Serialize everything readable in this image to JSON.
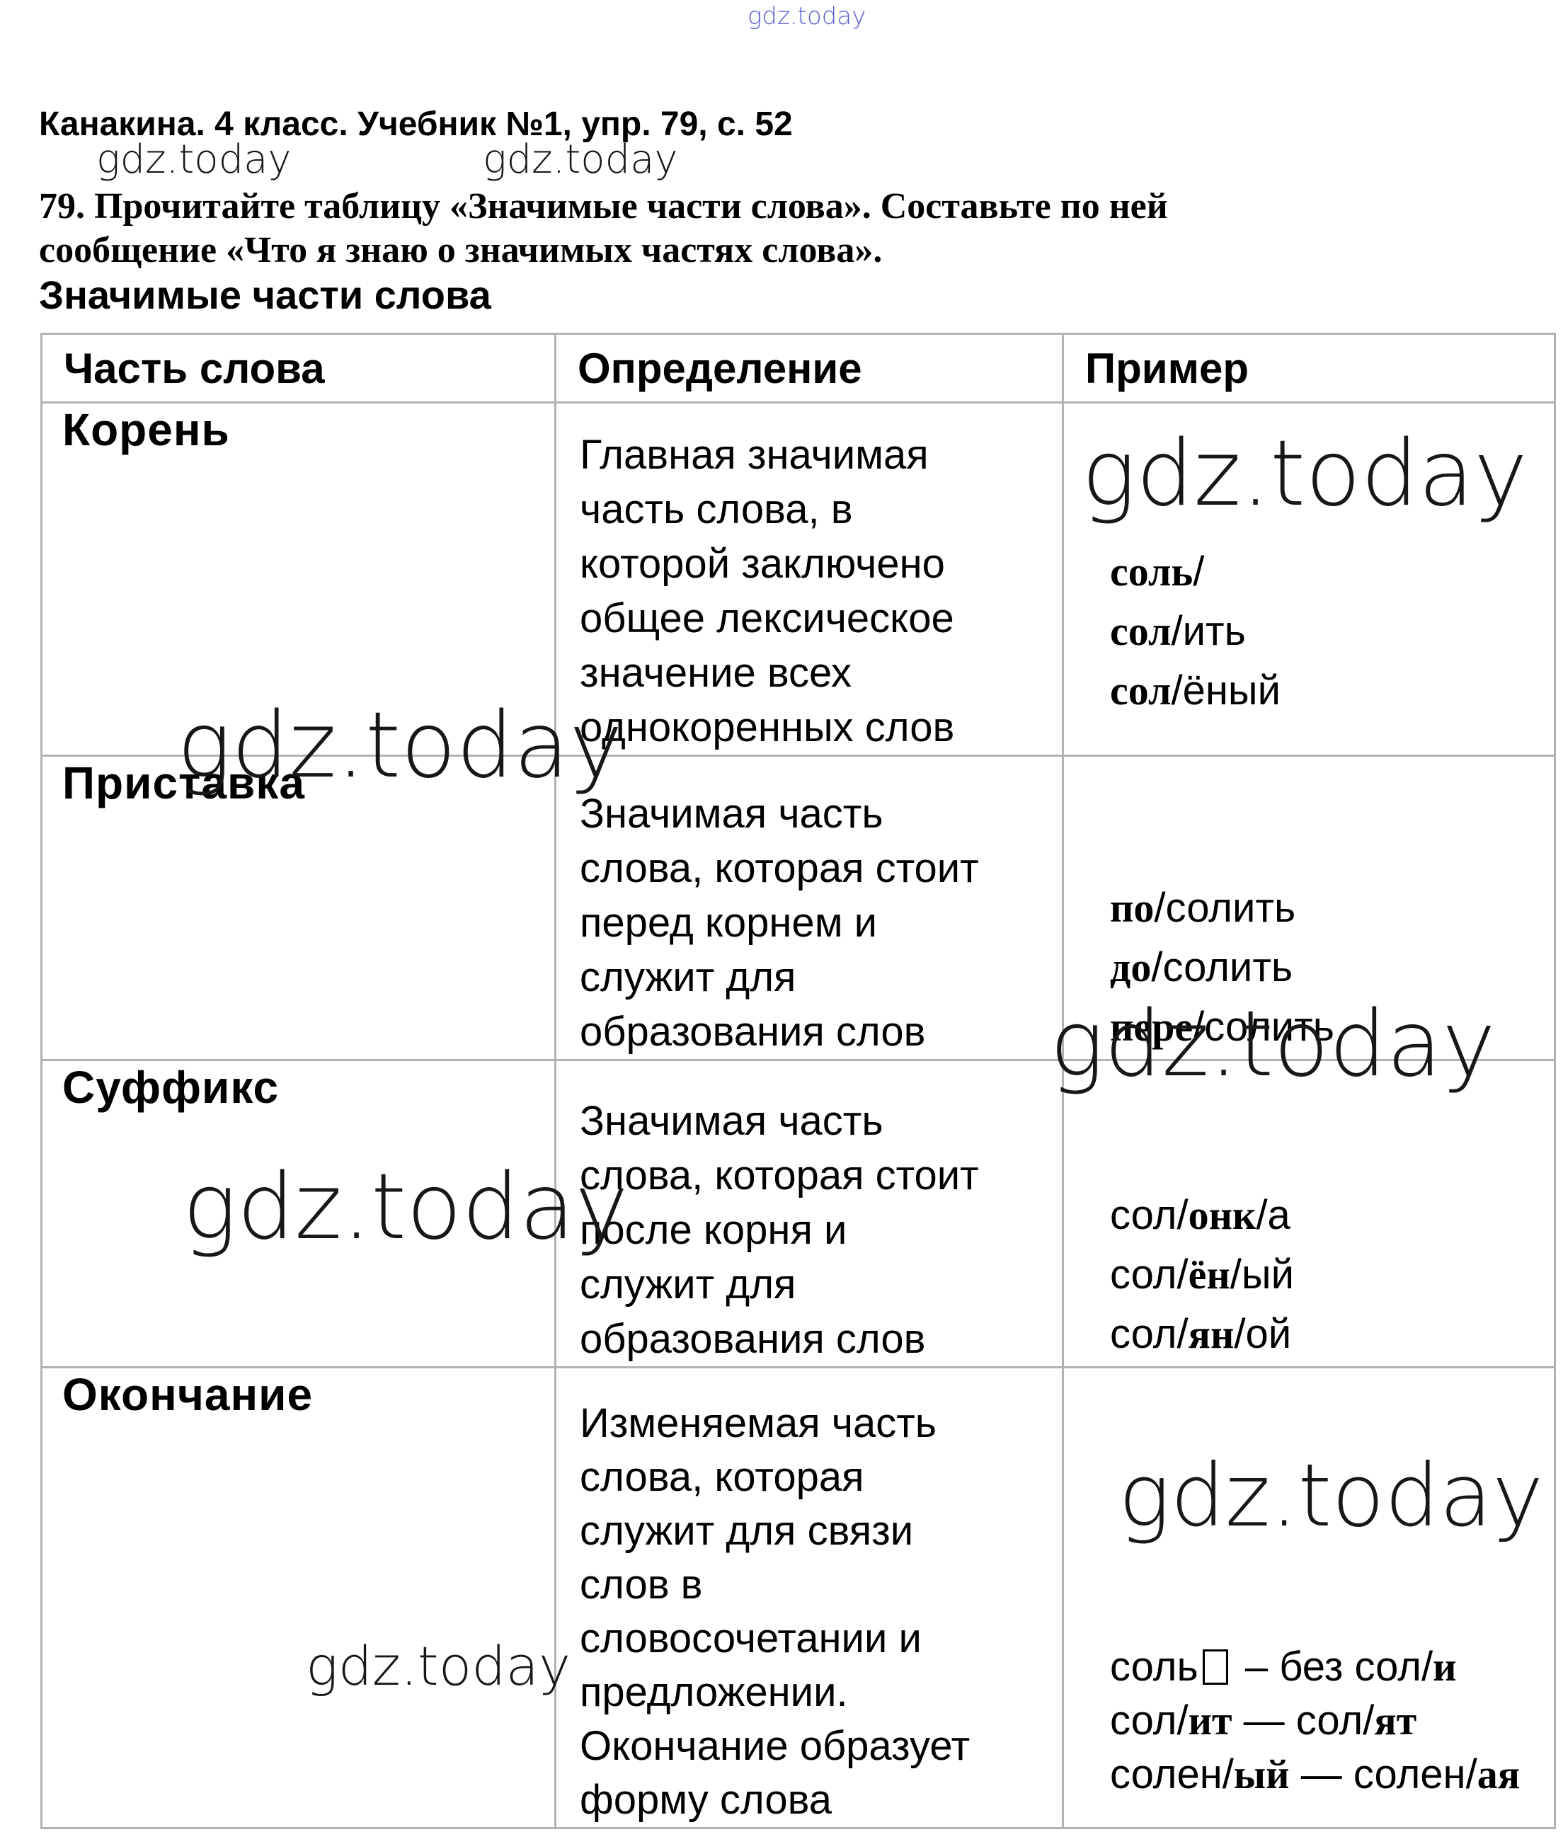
{
  "page": {
    "header": "Канакина. 4 класс. Учебник №1, упр. 79, с. 52",
    "task_line1": "79. Прочитайте таблицу «Значимые части слова». Составьте по ней",
    "task_line2": "сообщение «Что я знаю о значимых частях слова».",
    "table_title": "Значимые части слова"
  },
  "watermark": {
    "text": "gdz.today",
    "accent_color": "#5c5ccf",
    "dark_color": "#171717"
  },
  "table": {
    "columns": [
      "Часть слова",
      "Определение",
      "Пример"
    ],
    "rows": [
      {
        "part": "Корень",
        "definition": "Главная значимая\nчасть слова, в\nкоторой заключено\nобщее лексическое\nзначение всех\nоднокоренных слов",
        "examples": [
          [
            {
              "t": "соль",
              "f": "b"
            },
            {
              "t": "/",
              "f": "n"
            }
          ],
          [
            {
              "t": "сол",
              "f": "b"
            },
            {
              "t": "/ить",
              "f": "n"
            }
          ],
          [
            {
              "t": "сол",
              "f": "b"
            },
            {
              "t": "/ёный",
              "f": "n"
            }
          ]
        ]
      },
      {
        "part": "Приставка",
        "definition": "Значимая часть\nслова, которая стоит\nперед корнем и\nслужит для\nобразования слов",
        "examples": [
          [
            {
              "t": "по",
              "f": "b"
            },
            {
              "t": "/солить",
              "f": "n"
            }
          ],
          [
            {
              "t": "до",
              "f": "b"
            },
            {
              "t": "/солить",
              "f": "n"
            }
          ],
          [
            {
              "t": "пере",
              "f": "b"
            },
            {
              "t": "/солить",
              "f": "n"
            }
          ]
        ]
      },
      {
        "part": "Суффикс",
        "definition": "Значимая часть\nслова, которая стоит\nпосле корня и\nслужит для\nобразования слов",
        "examples": [
          [
            {
              "t": "сол/",
              "f": "n"
            },
            {
              "t": "онк",
              "f": "b"
            },
            {
              "t": "/а",
              "f": "n"
            }
          ],
          [
            {
              "t": "сол/",
              "f": "n"
            },
            {
              "t": "ён",
              "f": "b"
            },
            {
              "t": "/ый",
              "f": "n"
            }
          ],
          [
            {
              "t": "сол/",
              "f": "n"
            },
            {
              "t": "ян",
              "f": "b"
            },
            {
              "t": "/ой",
              "f": "n"
            }
          ]
        ]
      },
      {
        "part": "Окончание",
        "definition": "Изменяемая часть\nслова, которая\nслужит для связи\nслов в\nсловосочетании и\nпредложении.\nОкончание образует\nформу слова",
        "examples": [
          [
            {
              "t": "соль",
              "f": "n"
            },
            {
              "t": "",
              "f": "sq"
            },
            {
              "t": " – без сол",
              "f": "n"
            },
            {
              "t": "/",
              "f": "n"
            },
            {
              "t": "и",
              "f": "b"
            }
          ],
          [
            {
              "t": "сол",
              "f": "n"
            },
            {
              "t": "/",
              "f": "n"
            },
            {
              "t": "ит",
              "f": "b"
            },
            {
              "t": " — ",
              "f": "n"
            },
            {
              "t": "сол",
              "f": "n"
            },
            {
              "t": "/",
              "f": "n"
            },
            {
              "t": "ят",
              "f": "b"
            }
          ],
          [
            {
              "t": "солен",
              "f": "n"
            },
            {
              "t": "/",
              "f": "n"
            },
            {
              "t": "ый",
              "f": "b"
            },
            {
              "t": " — ",
              "f": "n"
            },
            {
              "t": "солен",
              "f": "n"
            },
            {
              "t": "/",
              "f": "n"
            },
            {
              "t": "ая",
              "f": "b"
            }
          ]
        ]
      }
    ]
  }
}
